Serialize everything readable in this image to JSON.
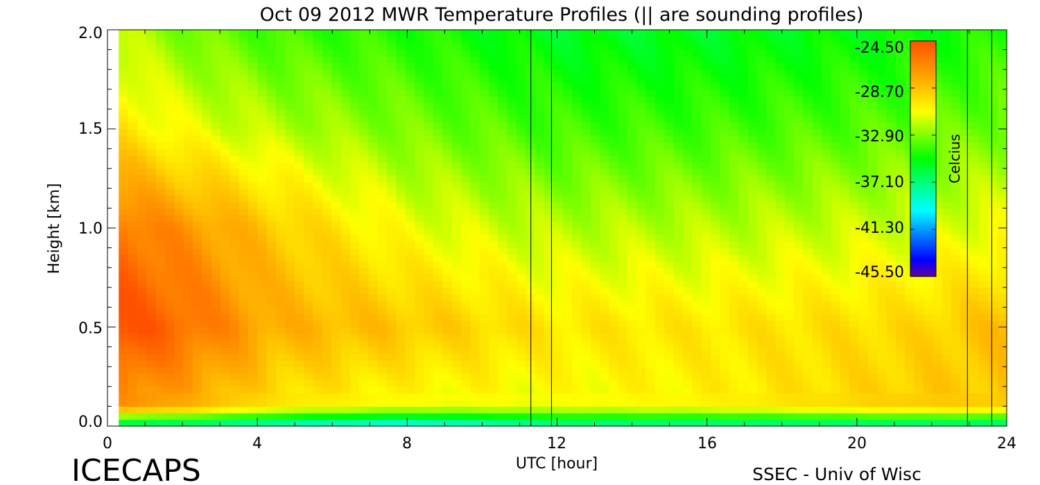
{
  "chart_data": {
    "type": "heatmap",
    "title": "Oct 09 2012 MWR Temperature Profiles (|| are sounding profiles)",
    "xlabel": "UTC [hour]",
    "ylabel": "Height [km]",
    "xlim": [
      0,
      24
    ],
    "ylim": [
      0,
      2.0
    ],
    "x_ticks": [
      "0",
      "4",
      "8",
      "12",
      "16",
      "20",
      "24"
    ],
    "y_ticks": [
      "0.0",
      "0.5",
      "1.0",
      "1.5",
      "2.0"
    ],
    "colorbar": {
      "label": "Celcius",
      "ticks": [
        "-24.50",
        "-28.70",
        "-32.90",
        "-37.10",
        "-41.30",
        "-45.50"
      ],
      "range": [
        -45.5,
        -24.5
      ]
    },
    "sounding_times": [
      11.3,
      11.85,
      22.95,
      23.6
    ],
    "data_start_hour": 0.3,
    "approx_profiles": [
      {
        "hour": 0.5,
        "temps_at_height_km": {
          "0.0": -38,
          "0.1": -27,
          "0.5": -24.5,
          "1.0": -26,
          "1.5": -30,
          "2.0": -32
        }
      },
      {
        "hour": 2.0,
        "temps_at_height_km": {
          "0.0": -38,
          "0.1": -28,
          "0.5": -25.5,
          "1.0": -27,
          "1.5": -31,
          "2.0": -33
        }
      },
      {
        "hour": 4.5,
        "temps_at_height_km": {
          "0.0": -39,
          "0.1": -30,
          "0.5": -28,
          "1.0": -29,
          "1.5": -32,
          "2.0": -34
        }
      },
      {
        "hour": 8.0,
        "temps_at_height_km": {
          "0.0": -40,
          "0.1": -31,
          "0.5": -28.8,
          "1.0": -31,
          "1.5": -33,
          "2.0": -34.5
        }
      },
      {
        "hour": 12.0,
        "temps_at_height_km": {
          "0.0": -38,
          "0.1": -31,
          "0.5": -30,
          "1.0": -32,
          "1.5": -34,
          "2.0": -35.5
        }
      },
      {
        "hour": 16.0,
        "temps_at_height_km": {
          "0.0": -38,
          "0.1": -30.5,
          "0.5": -30,
          "1.0": -32,
          "1.5": -34,
          "2.0": -35.5
        }
      },
      {
        "hour": 21.5,
        "temps_at_height_km": {
          "0.0": -38,
          "0.1": -29,
          "0.5": -29.5,
          "1.0": -31.5,
          "1.5": -33.5,
          "2.0": -35
        }
      },
      {
        "hour": 24.0,
        "temps_at_height_km": {
          "0.0": -38,
          "0.1": -29,
          "0.5": -28.5,
          "1.0": -31,
          "1.5": -33,
          "2.0": -34.5
        }
      }
    ]
  },
  "footer": {
    "left_label": "ICECAPS",
    "right_label": "SSEC - Univ of Wisc"
  },
  "colors": {
    "warm": "#ff6400",
    "orange": "#ffa000",
    "yellow": "#ffff00",
    "green": "#00ff00",
    "cyan": "#00ffff",
    "blue": "#0000ff",
    "violet": "#5000a0"
  }
}
